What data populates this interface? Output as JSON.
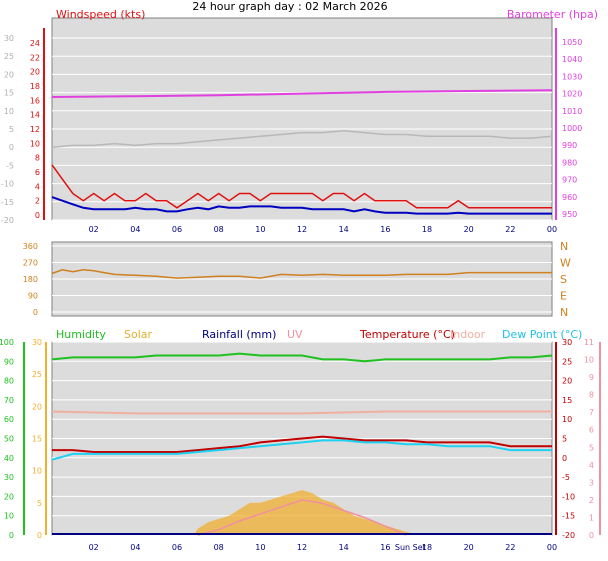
{
  "title": "24 hour graph day : 02 March 2026",
  "colors": {
    "wind": "#e01010",
    "wind_avg": "#0000c0",
    "baro": "#e040e0",
    "temp_left_axis": "#b0b0b0",
    "dir": "#d08020",
    "humidity": "#20c020",
    "solar": "#f0b030",
    "rain": "#000080",
    "uv": "#f090a0",
    "temperature": "#c00000",
    "indoor": "#f0b0a0",
    "dewpoint": "#20d0f0",
    "plot_bg": "#dcdcdc"
  },
  "x_tick_labels": [
    "02",
    "04",
    "06",
    "08",
    "10",
    "12",
    "14",
    "16",
    "18",
    "20",
    "22",
    "00"
  ],
  "sun_label": "Sun Set",
  "chart_data": [
    {
      "type": "line",
      "panel": "wind-baro",
      "left_axis_label": "Windspeed (kts)",
      "right_axis_label": "Barometer (hpa)",
      "left_outer_ticks": [
        "30",
        "25",
        "20",
        "15",
        "10",
        "5",
        "0",
        "-5",
        "-10",
        "-15",
        "-20"
      ],
      "left_inner_ticks": [
        "24",
        "22",
        "20",
        "18",
        "16",
        "14",
        "12",
        "10",
        "8",
        "6",
        "4",
        "2",
        "0"
      ],
      "right_ticks": [
        "1050",
        "1040",
        "1030",
        "1020",
        "1010",
        "1000",
        "990",
        "980",
        "970",
        "960",
        "950"
      ],
      "ylim_wind": [
        0,
        25
      ],
      "ylim_baro": [
        947,
        1052
      ],
      "ylim_outer": [
        -20,
        30
      ],
      "series": [
        {
          "key": "gust",
          "x": [
            0,
            0.5,
            1,
            1.5,
            2,
            2.5,
            3,
            3.5,
            4,
            4.5,
            5,
            5.5,
            6,
            6.5,
            7,
            7.5,
            8,
            8.5,
            9,
            9.5,
            10,
            10.5,
            11,
            11.5,
            12,
            12.5,
            13,
            13.5,
            14,
            14.5,
            15,
            15.5,
            16,
            16.5,
            17,
            17.5,
            18,
            18.5,
            19,
            19.5,
            20,
            20.5,
            21,
            21.5,
            22,
            22.5,
            23,
            23.5,
            24
          ],
          "y": [
            7,
            5,
            3,
            2,
            3,
            2,
            3,
            2,
            2,
            3,
            2,
            2,
            1,
            2,
            3,
            2,
            3,
            2,
            3,
            3,
            2,
            3,
            3,
            3,
            3,
            3,
            2,
            3,
            3,
            2,
            3,
            2,
            2,
            2,
            2,
            1,
            1,
            1,
            1,
            2,
            1,
            1,
            1,
            1,
            1,
            1,
            1,
            1,
            1
          ]
        },
        {
          "key": "avg",
          "x": [
            0,
            0.5,
            1,
            1.5,
            2,
            2.5,
            3,
            3.5,
            4,
            4.5,
            5,
            5.5,
            6,
            6.5,
            7,
            7.5,
            8,
            8.5,
            9,
            9.5,
            10,
            10.5,
            11,
            11.5,
            12,
            12.5,
            13,
            13.5,
            14,
            14.5,
            15,
            15.5,
            16,
            16.5,
            17,
            17.5,
            18,
            18.5,
            19,
            19.5,
            20,
            20.5,
            21,
            21.5,
            22,
            22.5,
            23,
            23.5,
            24
          ],
          "y": [
            2.5,
            2,
            1.5,
            1,
            0.8,
            0.8,
            0.8,
            0.8,
            1,
            0.8,
            0.8,
            0.5,
            0.5,
            0.8,
            1,
            0.8,
            1.2,
            1,
            1,
            1.2,
            1.2,
            1.2,
            1,
            1,
            1,
            0.8,
            0.8,
            0.8,
            0.8,
            0.5,
            0.8,
            0.5,
            0.3,
            0.3,
            0.3,
            0.2,
            0.2,
            0.2,
            0.2,
            0.3,
            0.2,
            0.2,
            0.2,
            0.2,
            0.2,
            0.2,
            0.2,
            0.2,
            0.2
          ]
        },
        {
          "key": "baro",
          "x": [
            0,
            4,
            8,
            12,
            16,
            20,
            24
          ],
          "y": [
            1018,
            1018.5,
            1019,
            1020,
            1021,
            1021.5,
            1022
          ]
        },
        {
          "key": "temp_grey",
          "x": [
            0,
            1,
            2,
            3,
            4,
            5,
            6,
            7,
            8,
            9,
            10,
            11,
            12,
            13,
            14,
            15,
            16,
            17,
            18,
            19,
            20,
            21,
            22,
            23,
            24
          ],
          "y": [
            0,
            0.5,
            0.5,
            1,
            0.5,
            1,
            1,
            1.5,
            2,
            2.5,
            3,
            3.5,
            4,
            4,
            4.5,
            4,
            3.5,
            3.5,
            3,
            3,
            3,
            3,
            2.5,
            2.5,
            3
          ]
        }
      ]
    },
    {
      "type": "line",
      "panel": "wind-direction",
      "left_ticks": [
        "360",
        "270",
        "180",
        "90",
        "0"
      ],
      "right_labels": [
        "N",
        "W",
        "S",
        "E",
        "N"
      ],
      "ylim": [
        0,
        360
      ],
      "x": [
        0,
        0.5,
        1,
        1.5,
        2,
        2.5,
        3,
        4,
        5,
        6,
        7,
        8,
        9,
        10,
        11,
        12,
        13,
        14,
        15,
        16,
        17,
        18,
        19,
        20,
        21,
        22,
        23,
        24
      ],
      "y": [
        210,
        230,
        220,
        230,
        225,
        215,
        205,
        200,
        195,
        185,
        190,
        195,
        195,
        185,
        205,
        200,
        205,
        200,
        200,
        200,
        205,
        205,
        205,
        215,
        215,
        215,
        215,
        215
      ]
    },
    {
      "type": "line",
      "panel": "temp-humidity",
      "legend": [
        "Humidity",
        "Solar",
        "Rainfall (mm)",
        "UV",
        "Temperature (°C)",
        "Indoor",
        "Dew Point (°C)"
      ],
      "humidity_ticks": [
        "100",
        "90",
        "80",
        "70",
        "60",
        "50",
        "40",
        "30",
        "20",
        "10",
        "0"
      ],
      "solar_ticks": [
        "30",
        "25",
        "20",
        "15",
        "10",
        "5",
        "0"
      ],
      "temp_ticks": [
        "30",
        "25",
        "20",
        "15",
        "10",
        "5",
        "0",
        "-5",
        "-10",
        "-15",
        "-20"
      ],
      "uv_ticks": [
        "11",
        "10",
        "9",
        "8",
        "7",
        "6",
        "5",
        "4",
        "3",
        "2",
        "1",
        "0"
      ],
      "ylim_humidity": [
        0,
        100
      ],
      "ylim_temp": [
        -20,
        30
      ],
      "series": [
        {
          "key": "humidity",
          "x": [
            0,
            1,
            2,
            3,
            4,
            5,
            6,
            7,
            8,
            9,
            10,
            11,
            12,
            13,
            14,
            15,
            16,
            17,
            18,
            19,
            20,
            21,
            22,
            23,
            24
          ],
          "y": [
            91,
            92,
            92,
            92,
            92,
            93,
            93,
            93,
            93,
            94,
            93,
            93,
            93,
            91,
            91,
            90,
            91,
            91,
            91,
            91,
            91,
            91,
            92,
            92,
            93
          ]
        },
        {
          "key": "temperature",
          "x": [
            0,
            1,
            2,
            3,
            4,
            5,
            6,
            7,
            8,
            9,
            10,
            11,
            12,
            13,
            14,
            15,
            16,
            17,
            18,
            19,
            20,
            21,
            22,
            23,
            24
          ],
          "y": [
            2,
            2,
            1.5,
            1.5,
            1.5,
            1.5,
            1.5,
            2,
            2.5,
            3,
            4,
            4.5,
            5,
            5.5,
            5,
            4.5,
            4.5,
            4.5,
            4,
            4,
            4,
            4,
            3,
            3,
            3
          ]
        },
        {
          "key": "dewpoint",
          "x": [
            0,
            1,
            2,
            3,
            4,
            5,
            6,
            7,
            8,
            9,
            10,
            11,
            12,
            13,
            14,
            15,
            16,
            17,
            18,
            19,
            20,
            21,
            22,
            23,
            24
          ],
          "y": [
            -0.5,
            1,
            1,
            1,
            1,
            1,
            1,
            1.5,
            2,
            2.5,
            3,
            3.5,
            4,
            4.5,
            4.5,
            4,
            4,
            3.5,
            3.5,
            3,
            3,
            3,
            2,
            2,
            2
          ]
        },
        {
          "key": "indoor",
          "x": [
            0,
            4,
            8,
            12,
            16,
            20,
            24
          ],
          "y": [
            12,
            11.5,
            11.5,
            11.5,
            12,
            12,
            12
          ]
        },
        {
          "key": "solar",
          "x": [
            6.8,
            7,
            7.5,
            8,
            8.5,
            9,
            9.5,
            10,
            10.5,
            11,
            11.5,
            12,
            12.5,
            13,
            13.5,
            14,
            14.5,
            15,
            15.5,
            16,
            16.5,
            17,
            17.5
          ],
          "y": [
            0,
            1,
            2,
            2.5,
            3,
            4,
            5,
            5,
            5.5,
            6,
            6.5,
            7,
            6.5,
            5.5,
            5,
            4,
            3,
            2.5,
            2,
            1.5,
            1,
            0.5,
            0
          ]
        },
        {
          "key": "uv",
          "x": [
            7,
            8,
            9,
            10,
            11,
            12,
            13,
            14,
            15,
            16,
            17
          ],
          "y": [
            0,
            0.3,
            0.8,
            1.2,
            1.6,
            2,
            1.8,
            1.4,
            1,
            0.5,
            0
          ]
        }
      ]
    }
  ]
}
